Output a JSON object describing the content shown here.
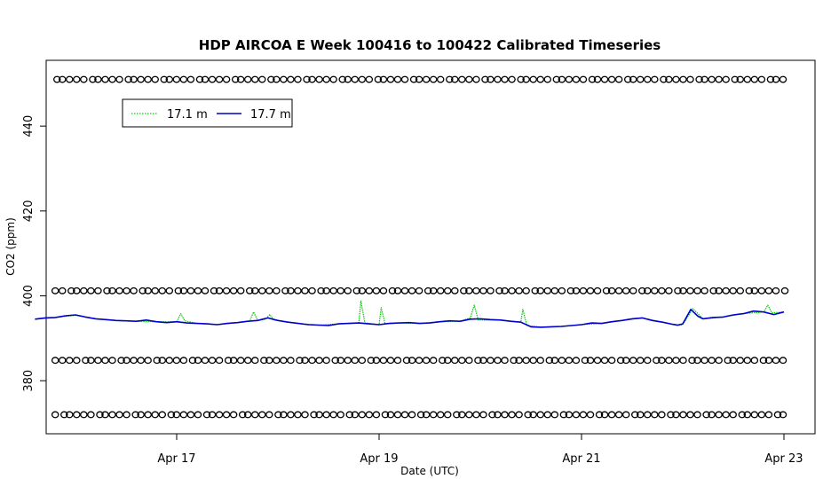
{
  "chart_data": {
    "type": "line",
    "title": "HDP AIRCOA E  Week 100416 to 100422  Calibrated Timeseries",
    "xlabel": "Date (UTC)",
    "ylabel": "CO2 (ppm)",
    "x_range": [
      15.5,
      23.1
    ],
    "ylim": [
      367.5,
      455.5
    ],
    "x_ticks": [
      {
        "value": 17,
        "label": "Apr 17"
      },
      {
        "value": 19,
        "label": "Apr 19"
      },
      {
        "value": 21,
        "label": "Apr 21"
      },
      {
        "value": 23,
        "label": "Apr 23"
      }
    ],
    "y_ticks": [
      {
        "value": 380,
        "label": "380"
      },
      {
        "value": 400,
        "label": "400"
      },
      {
        "value": 420,
        "label": "420"
      },
      {
        "value": 440,
        "label": "440"
      }
    ],
    "grid": false,
    "legend": {
      "placement": "top-left",
      "entries": [
        {
          "name": "17.1 m",
          "color": "#00cc00",
          "style": "dotted"
        },
        {
          "name": "17.7 m",
          "color": "#0000cc",
          "style": "solid"
        }
      ]
    },
    "series": [
      {
        "name": "17.1 m",
        "color": "#00cc00",
        "points": [
          [
            15.6,
            394.5
          ],
          [
            15.8,
            394.9
          ],
          [
            16.0,
            395.4
          ],
          [
            16.2,
            394.6
          ],
          [
            16.4,
            394.2
          ],
          [
            16.6,
            394.0
          ],
          [
            16.8,
            393.9
          ],
          [
            17.0,
            393.9
          ],
          [
            17.04,
            395.8
          ],
          [
            17.08,
            394.1
          ],
          [
            17.2,
            393.5
          ],
          [
            17.4,
            393.2
          ],
          [
            17.6,
            393.7
          ],
          [
            17.72,
            394.0
          ],
          [
            17.76,
            396.2
          ],
          [
            17.8,
            394.2
          ],
          [
            17.88,
            394.5
          ],
          [
            17.92,
            395.6
          ],
          [
            17.96,
            394.3
          ],
          [
            18.0,
            394.2
          ],
          [
            18.2,
            393.5
          ],
          [
            18.4,
            393.1
          ],
          [
            18.6,
            393.4
          ],
          [
            18.8,
            393.6
          ],
          [
            18.82,
            398.8
          ],
          [
            18.86,
            393.6
          ],
          [
            19.0,
            393.2
          ],
          [
            19.02,
            397.2
          ],
          [
            19.06,
            393.4
          ],
          [
            19.2,
            393.6
          ],
          [
            19.4,
            393.5
          ],
          [
            19.6,
            393.9
          ],
          [
            19.8,
            394.0
          ],
          [
            19.9,
            394.8
          ],
          [
            19.94,
            397.8
          ],
          [
            19.98,
            394.3
          ],
          [
            20.2,
            394.3
          ],
          [
            20.4,
            393.8
          ],
          [
            20.42,
            396.8
          ],
          [
            20.46,
            393.0
          ],
          [
            20.6,
            392.6
          ],
          [
            20.8,
            392.8
          ],
          [
            21.0,
            393.2
          ],
          [
            21.2,
            393.5
          ],
          [
            21.4,
            394.2
          ],
          [
            21.6,
            394.8
          ],
          [
            21.8,
            393.8
          ],
          [
            21.95,
            393.0
          ],
          [
            22.0,
            393.2
          ],
          [
            22.1,
            397.0
          ],
          [
            22.2,
            394.6
          ],
          [
            22.4,
            395.0
          ],
          [
            22.6,
            395.8
          ],
          [
            22.8,
            396.2
          ],
          [
            22.84,
            397.8
          ],
          [
            22.88,
            396.0
          ],
          [
            23.0,
            396.2
          ]
        ]
      },
      {
        "name": "17.7 m",
        "color": "#0000cc",
        "points": [
          [
            15.6,
            394.5
          ],
          [
            15.7,
            394.8
          ],
          [
            15.8,
            394.9
          ],
          [
            15.9,
            395.3
          ],
          [
            16.0,
            395.5
          ],
          [
            16.1,
            395.0
          ],
          [
            16.2,
            394.6
          ],
          [
            16.3,
            394.4
          ],
          [
            16.4,
            394.2
          ],
          [
            16.5,
            394.1
          ],
          [
            16.6,
            394.0
          ],
          [
            16.7,
            394.3
          ],
          [
            16.8,
            393.9
          ],
          [
            16.9,
            393.7
          ],
          [
            17.0,
            393.9
          ],
          [
            17.1,
            393.6
          ],
          [
            17.2,
            393.5
          ],
          [
            17.3,
            393.4
          ],
          [
            17.4,
            393.2
          ],
          [
            17.5,
            393.5
          ],
          [
            17.6,
            393.7
          ],
          [
            17.7,
            394.0
          ],
          [
            17.8,
            394.2
          ],
          [
            17.9,
            394.8
          ],
          [
            18.0,
            394.2
          ],
          [
            18.1,
            393.8
          ],
          [
            18.2,
            393.5
          ],
          [
            18.3,
            393.2
          ],
          [
            18.4,
            393.1
          ],
          [
            18.5,
            393.0
          ],
          [
            18.6,
            393.4
          ],
          [
            18.7,
            393.5
          ],
          [
            18.8,
            393.6
          ],
          [
            18.9,
            393.4
          ],
          [
            19.0,
            393.2
          ],
          [
            19.1,
            393.5
          ],
          [
            19.2,
            393.6
          ],
          [
            19.3,
            393.7
          ],
          [
            19.4,
            393.5
          ],
          [
            19.5,
            393.6
          ],
          [
            19.6,
            393.9
          ],
          [
            19.7,
            394.1
          ],
          [
            19.8,
            394.0
          ],
          [
            19.9,
            394.5
          ],
          [
            20.0,
            394.6
          ],
          [
            20.1,
            394.4
          ],
          [
            20.2,
            394.3
          ],
          [
            20.3,
            394.0
          ],
          [
            20.4,
            393.8
          ],
          [
            20.5,
            392.7
          ],
          [
            20.6,
            392.6
          ],
          [
            20.7,
            392.7
          ],
          [
            20.8,
            392.8
          ],
          [
            20.9,
            393.0
          ],
          [
            21.0,
            393.2
          ],
          [
            21.1,
            393.6
          ],
          [
            21.2,
            393.5
          ],
          [
            21.3,
            393.9
          ],
          [
            21.4,
            394.2
          ],
          [
            21.5,
            394.6
          ],
          [
            21.6,
            394.8
          ],
          [
            21.7,
            394.2
          ],
          [
            21.8,
            393.8
          ],
          [
            21.9,
            393.3
          ],
          [
            21.95,
            393.1
          ],
          [
            22.0,
            393.4
          ],
          [
            22.08,
            396.8
          ],
          [
            22.15,
            395.2
          ],
          [
            22.2,
            394.6
          ],
          [
            22.3,
            394.9
          ],
          [
            22.4,
            395.0
          ],
          [
            22.5,
            395.5
          ],
          [
            22.6,
            395.8
          ],
          [
            22.7,
            396.4
          ],
          [
            22.8,
            396.2
          ],
          [
            22.9,
            395.6
          ],
          [
            23.0,
            396.2
          ]
        ]
      }
    ],
    "reference_levels": {
      "marker": "circle",
      "color": "#000000",
      "levels": [
        451,
        401.2,
        384.8,
        372
      ]
    }
  }
}
